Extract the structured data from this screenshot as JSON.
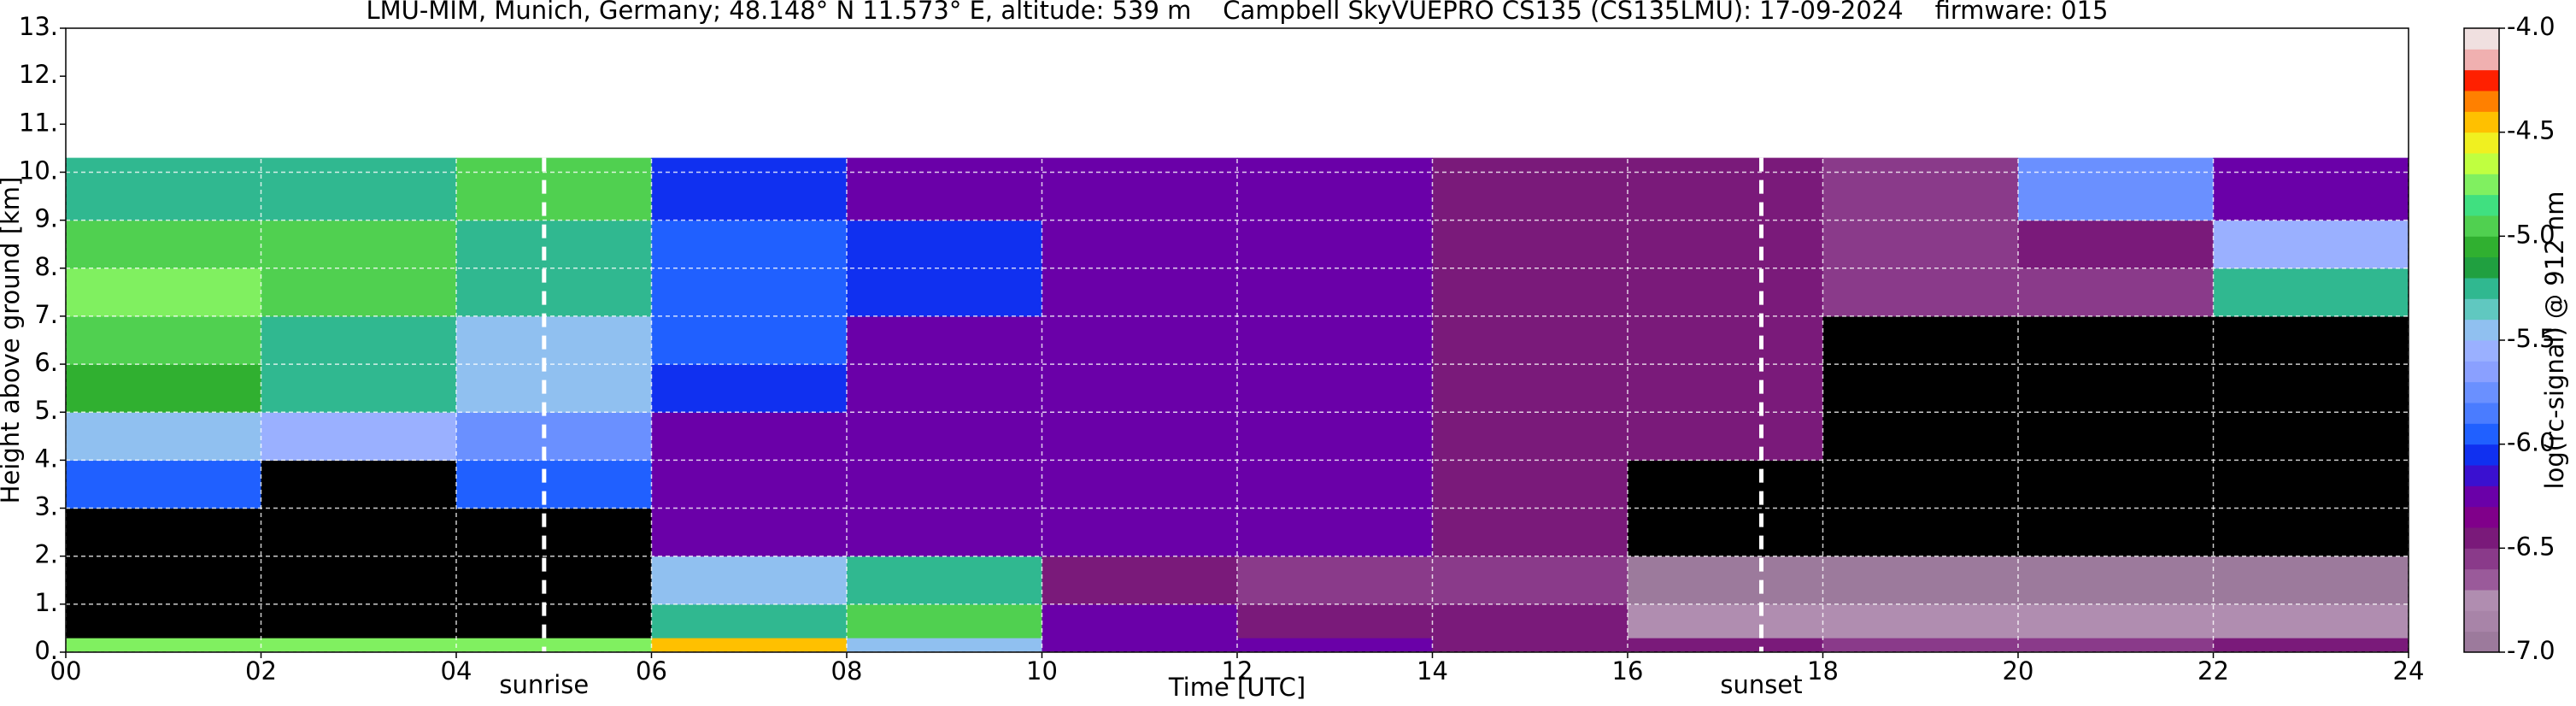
{
  "chart_data": {
    "type": "heatmap",
    "title": "LMU-MIM, Munich, Germany; 48.148° N 11.573° E, altitude: 539 m    Campbell SkyVUEPRO CS135 (CS135LMU): 17-09-2024    firmware: 015",
    "xlabel": "Time [UTC]",
    "ylabel": "Height above ground [km]",
    "colorbar_label": "log(rc-signal) @ 912 nm",
    "xlim": [
      0,
      24
    ],
    "ylim": [
      0,
      13
    ],
    "xticks": [
      {
        "value": 0,
        "label": "00"
      },
      {
        "value": 2,
        "label": "02"
      },
      {
        "value": 4,
        "label": "04"
      },
      {
        "value": 6,
        "label": "06"
      },
      {
        "value": 8,
        "label": "08"
      },
      {
        "value": 10,
        "label": "10"
      },
      {
        "value": 12,
        "label": "12"
      },
      {
        "value": 14,
        "label": "14"
      },
      {
        "value": 16,
        "label": "16"
      },
      {
        "value": 18,
        "label": "18"
      },
      {
        "value": 20,
        "label": "20"
      },
      {
        "value": 22,
        "label": "22"
      },
      {
        "value": 24,
        "label": "24"
      }
    ],
    "yticks": [
      {
        "value": 0,
        "label": "0."
      },
      {
        "value": 1,
        "label": "1."
      },
      {
        "value": 2,
        "label": "2."
      },
      {
        "value": 3,
        "label": "3."
      },
      {
        "value": 4,
        "label": "4."
      },
      {
        "value": 5,
        "label": "5."
      },
      {
        "value": 6,
        "label": "6."
      },
      {
        "value": 7,
        "label": "7."
      },
      {
        "value": 8,
        "label": "8."
      },
      {
        "value": 9,
        "label": "9."
      },
      {
        "value": 10,
        "label": "10."
      },
      {
        "value": 11,
        "label": "11."
      },
      {
        "value": 12,
        "label": "12."
      },
      {
        "value": 13,
        "label": "13."
      }
    ],
    "grid": true,
    "clim": [
      -7,
      -4
    ],
    "cticks": [
      {
        "value": -7,
        "label": "-7.0"
      },
      {
        "value": -6.5,
        "label": "-6.5"
      },
      {
        "value": -6,
        "label": "-6.0"
      },
      {
        "value": -5.5,
        "label": "-5.5"
      },
      {
        "value": -5,
        "label": "-5.0"
      },
      {
        "value": -4.5,
        "label": "-4.5"
      },
      {
        "value": -4,
        "label": "-4.0"
      }
    ],
    "colormap": [
      "#9c7a9c",
      "#a884a8",
      "#b08db0",
      "#9a5a9a",
      "#8a3a8a",
      "#7a1a7a",
      "#80008a",
      "#6a00a8",
      "#3a10d0",
      "#1030f0",
      "#2060ff",
      "#4a7cff",
      "#6a90ff",
      "#8aa0ff",
      "#9ab0ff",
      "#90c0f0",
      "#60c8c0",
      "#30b890",
      "#20a040",
      "#30b030",
      "#50d050",
      "#40e080",
      "#80f060",
      "#c0ff40",
      "#f0f020",
      "#ffc000",
      "#ff8000",
      "#ff2000",
      "#f0b0b0",
      "#f0e0e0"
    ],
    "missing_color": "#000000",
    "x_edges": [
      0,
      2,
      4,
      6,
      8,
      10,
      12,
      14,
      16,
      18,
      20,
      22,
      24
    ],
    "y_edges": [
      0,
      0.3,
      1,
      2,
      3,
      4,
      5,
      6,
      7,
      8,
      9,
      10.3
    ],
    "z": [
      [
        -4.8,
        -4.8,
        -4.8,
        -4.5,
        -5.5,
        -6.2,
        -6.3,
        -6.4,
        -6.5,
        -6.6,
        -6.6,
        -6.5
      ],
      [
        null,
        null,
        null,
        -5.2,
        -5.0,
        -6.3,
        -6.4,
        -6.5,
        -6.7,
        -6.8,
        -6.8,
        -6.8
      ],
      [
        null,
        null,
        null,
        -5.5,
        -5.3,
        -6.4,
        -6.6,
        -6.6,
        -6.9,
        -6.9,
        -6.9,
        -6.9
      ],
      [
        null,
        null,
        null,
        -6.2,
        -6.3,
        -6.3,
        -6.3,
        -6.4,
        null,
        null,
        null,
        null
      ],
      [
        -6.0,
        null,
        -6.0,
        -6.2,
        -6.3,
        -6.3,
        -6.3,
        -6.4,
        null,
        null,
        null,
        null
      ],
      [
        -5.5,
        -5.6,
        -5.8,
        -6.2,
        -6.2,
        -6.3,
        -6.3,
        -6.4,
        -6.5,
        null,
        null,
        null
      ],
      [
        -5.1,
        -5.3,
        -5.5,
        -6.1,
        -6.2,
        -6.3,
        -6.3,
        -6.4,
        -6.5,
        null,
        null,
        null
      ],
      [
        -4.9,
        -5.2,
        -5.4,
        -6.0,
        -6.2,
        -6.2,
        -6.3,
        -6.4,
        -6.5,
        null,
        null,
        null
      ],
      [
        -4.8,
        -5.0,
        -5.3,
        -6.0,
        -6.1,
        -6.2,
        -6.3,
        -6.4,
        -6.5,
        -6.6,
        -6.6,
        -5.3
      ],
      [
        -4.9,
        -5.0,
        -5.3,
        -6.0,
        -6.1,
        -6.2,
        -6.3,
        -6.4,
        -6.5,
        -6.6,
        -6.5,
        -5.6
      ],
      [
        -5.2,
        -5.2,
        -5.0,
        -6.1,
        -6.2,
        -6.2,
        -6.3,
        -6.4,
        -6.5,
        -6.6,
        -5.8,
        -6.2
      ]
    ],
    "annotations": [
      {
        "label": "sunrise",
        "x": 4.9
      },
      {
        "label": "sunset",
        "x": 17.37
      }
    ]
  }
}
